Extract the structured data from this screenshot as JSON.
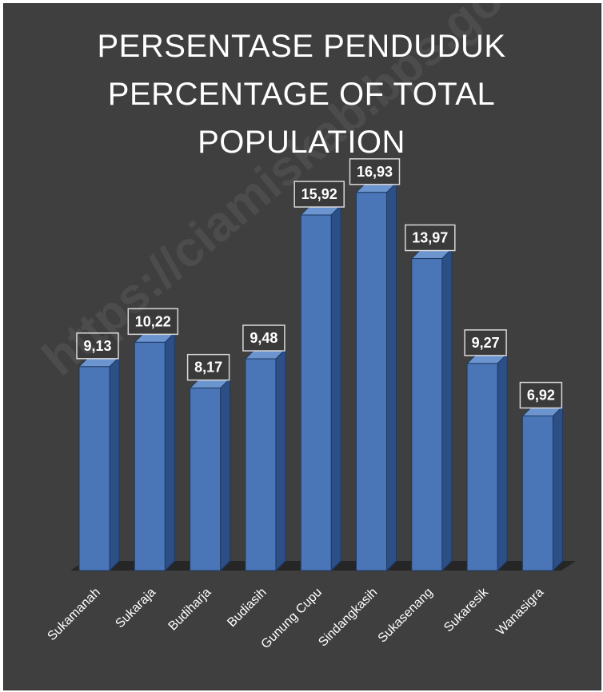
{
  "chart_data": {
    "type": "bar",
    "title_lines": [
      "PERSENTASE PENDUDUK",
      "PERCENTAGE OF TOTAL",
      "POPULATION"
    ],
    "categories": [
      "Sukamanah",
      "Sukaraja",
      "Budiharja",
      "Budiasih",
      "Gunung Cupu",
      "Sindangkasih",
      "Sukasenang",
      "Sukaresik",
      "Wanasigra"
    ],
    "values": [
      9.13,
      10.22,
      8.17,
      9.48,
      15.92,
      16.93,
      13.97,
      9.27,
      6.92
    ],
    "data_labels": [
      "9,13",
      "10,22",
      "8,17",
      "9,48",
      "15,92",
      "16,93",
      "13,97",
      "9,27",
      "6,92"
    ],
    "ylim": [
      0,
      20
    ],
    "grid": false,
    "legend": "none",
    "style": "3d-column",
    "colors": {
      "background": "#3f3f3f",
      "bar": "#4a76b8",
      "bar_side": "#2c4f86",
      "bar_top": "#6c95cf",
      "label_box": "#3a3a3a",
      "text": "#ffffff"
    }
  },
  "watermark": "https://ciamiskab.bps.go.id"
}
